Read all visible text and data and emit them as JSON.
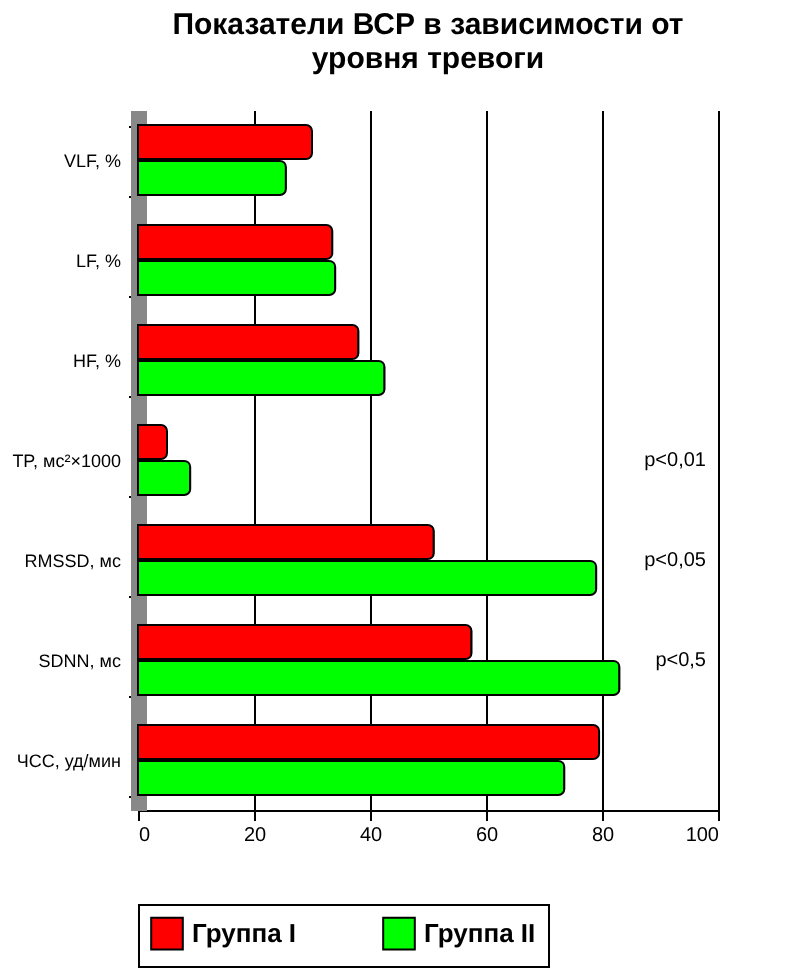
{
  "chart_data": {
    "type": "bar",
    "orientation": "horizontal",
    "title": "Показатели ВСР в зависимости от\nуровня тревоги",
    "categories": [
      "VLF, %",
      "LF, %",
      "HF, %",
      "TP, мс²×1000",
      "RMSSD, мс",
      "SDNN, мс",
      "ЧСС, уд/мин"
    ],
    "series": [
      {
        "name": "Группа I",
        "color": "#ff0000",
        "values": [
          30,
          33.5,
          38,
          5,
          51,
          57.5,
          79.5
        ]
      },
      {
        "name": "Группа II",
        "color": "#00ff00",
        "values": [
          25.5,
          34,
          42.5,
          9,
          79,
          83,
          73.5
        ]
      }
    ],
    "xlim": [
      0,
      100
    ],
    "xticks": [
      0,
      20,
      40,
      60,
      80,
      100
    ],
    "grid": "x",
    "legend": "bottom",
    "annotations": [
      "p<0,01",
      "p<0,05",
      "p<0,5"
    ]
  }
}
